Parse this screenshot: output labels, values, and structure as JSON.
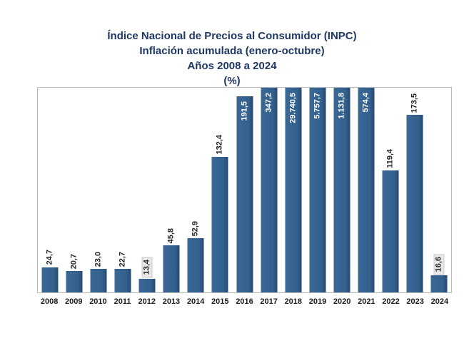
{
  "chart_data": {
    "type": "bar",
    "title_lines": [
      "Índice Nacional de Precios al Consumidor (INPC)",
      "Inflación acumulada (enero-octubre)",
      "Años 2008 a 2024",
      "(%)"
    ],
    "categories": [
      "2008",
      "2009",
      "2010",
      "2011",
      "2012",
      "2013",
      "2014",
      "2015",
      "2016",
      "2017",
      "2018",
      "2019",
      "2020",
      "2021",
      "2022",
      "2023",
      "2024"
    ],
    "values": [
      24.7,
      20.7,
      23.0,
      22.7,
      13.4,
      45.8,
      52.9,
      132.4,
      191.5,
      347.2,
      29740.5,
      5757.7,
      1131.8,
      574.4,
      119.4,
      173.5,
      16.6
    ],
    "value_labels": [
      "24,7",
      "20,7",
      "23,0",
      "22,7",
      "13,4",
      "45,8",
      "52,9",
      "132,4",
      "191,5",
      "347,2",
      "29.740,5",
      "5.757,7",
      "1.131,8",
      "574,4",
      "119,4",
      "173,5",
      "16,6"
    ],
    "labels_inside_bar": [
      "2016",
      "2017",
      "2018",
      "2019",
      "2020",
      "2021"
    ],
    "labels_highlighted": [
      "2012",
      "2024"
    ],
    "bars_clipped_at_ymax": [
      "2017",
      "2018",
      "2019",
      "2020",
      "2021"
    ],
    "xlabel": "",
    "ylabel": "",
    "ylim": [
      0,
      200
    ],
    "grid": false,
    "legend": false,
    "colors": {
      "bar": "#35618E",
      "bar_edge_dark": "#27496F",
      "title": "#1F3864",
      "label_outside": "#262626",
      "label_inside": "#FFFFFF",
      "label_highlight_bg": "#E9E8E8",
      "plot_border": "#BABABA",
      "axis_text": "#1A1A1A"
    }
  }
}
